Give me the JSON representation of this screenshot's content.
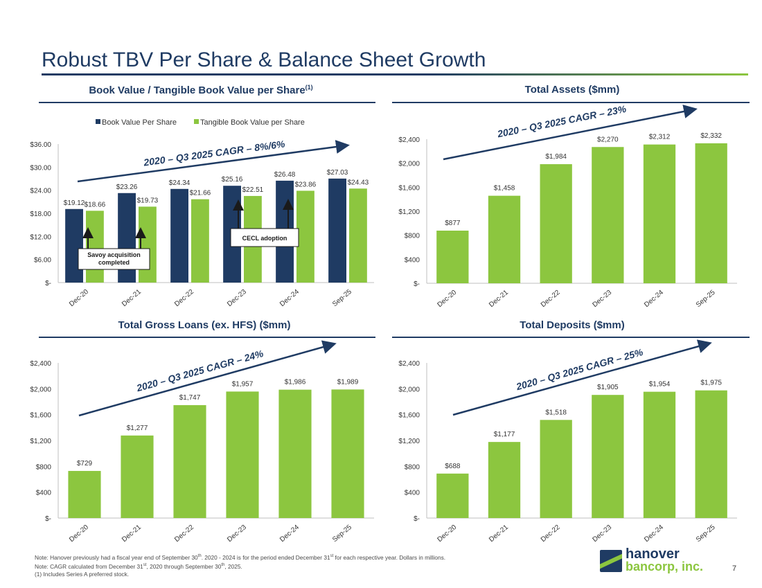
{
  "slide": {
    "title": "Robust TBV Per Share & Balance Sheet Growth",
    "page_number": "7"
  },
  "colors": {
    "navy": "#1f3b63",
    "green": "#8cc63f"
  },
  "panels": {
    "bv": {
      "title": "Book Value / Tangible Book Value per Share",
      "title_sup": "(1)"
    },
    "assets": {
      "title": "Total Assets ($mm)"
    },
    "loans": {
      "title": "Total Gross Loans (ex. HFS) ($mm)"
    },
    "deposits": {
      "title": "Total Deposits ($mm)"
    }
  },
  "footnotes": {
    "line1_a": "Note: Hanover previously had a fiscal year end of September 30",
    "line1_sup1": "th",
    "line1_b": ". 2020 - 2024 is for the period ended December 31",
    "line1_sup2": "st",
    "line1_c": " for each respective year. Dollars in millions.",
    "line2_a": "Note: CAGR calculated from December 31",
    "line2_sup1": "st",
    "line2_b": ", 2020 through September 30",
    "line2_sup2": "th",
    "line2_c": ", 2025.",
    "line3": "(1) Includes Series A preferred stock."
  },
  "logo": {
    "word1": "hanover",
    "word2": "bancorp, inc."
  },
  "chart_data": [
    {
      "id": "bv",
      "type": "bar",
      "title": "Book Value / Tangible Book Value per Share(1)",
      "categories": [
        "Dec-20",
        "Dec-21",
        "Dec-22",
        "Dec-23",
        "Dec-24",
        "Sep-25"
      ],
      "series": [
        {
          "name": "Book Value Per Share",
          "color": "#1f3b63",
          "values": [
            19.12,
            23.26,
            24.34,
            25.16,
            26.48,
            27.03
          ],
          "labels": [
            "$19.12",
            "$23.26",
            "$24.34",
            "$25.16",
            "$26.48",
            "$27.03"
          ]
        },
        {
          "name": "Tangible Book Value per Share",
          "color": "#8cc63f",
          "values": [
            18.66,
            19.73,
            21.66,
            22.51,
            23.86,
            24.43
          ],
          "labels": [
            "$18.66",
            "$19.73",
            "$21.66",
            "$22.51",
            "$23.86",
            "$24.43"
          ]
        }
      ],
      "ylim": [
        0,
        36
      ],
      "yticks": [
        0,
        6,
        12,
        18,
        24,
        30,
        36
      ],
      "ytick_labels": [
        "$-",
        "$6.00",
        "$12.00",
        "$18.00",
        "$24.00",
        "$30.00",
        "$36.00"
      ],
      "legend": "top-center",
      "cagr_label": "2020 – Q3 2025 CAGR – 8%/6%",
      "annotations": [
        {
          "text_lines": [
            "Savoy acquisition",
            "completed"
          ],
          "category_index": 1
        },
        {
          "text_lines": [
            "CECL adoption"
          ],
          "category_index": 3
        }
      ]
    },
    {
      "id": "assets",
      "type": "bar",
      "title": "Total Assets ($mm)",
      "categories": [
        "Dec-20",
        "Dec-21",
        "Dec-22",
        "Dec-23",
        "Dec-24",
        "Sep-25"
      ],
      "values": [
        877,
        1458,
        1984,
        2270,
        2312,
        2332
      ],
      "labels": [
        "$877",
        "$1,458",
        "$1,984",
        "$2,270",
        "$2,312",
        "$2,332"
      ],
      "ylim": [
        0,
        2400
      ],
      "yticks": [
        0,
        400,
        800,
        1200,
        1600,
        2000,
        2400
      ],
      "ytick_labels": [
        "$-",
        "$400",
        "$800",
        "$1,200",
        "$1,600",
        "$2,000",
        "$2,400"
      ],
      "cagr_label": "2020 – Q3 2025 CAGR – 23%"
    },
    {
      "id": "loans",
      "type": "bar",
      "title": "Total Gross Loans (ex. HFS) ($mm)",
      "categories": [
        "Dec-20",
        "Dec-21",
        "Dec-22",
        "Dec-23",
        "Dec-24",
        "Sep-25"
      ],
      "values": [
        729,
        1277,
        1747,
        1957,
        1986,
        1989
      ],
      "labels": [
        "$729",
        "$1,277",
        "$1,747",
        "$1,957",
        "$1,986",
        "$1,989"
      ],
      "ylim": [
        0,
        2400
      ],
      "yticks": [
        0,
        400,
        800,
        1200,
        1600,
        2000,
        2400
      ],
      "ytick_labels": [
        "$-",
        "$400",
        "$800",
        "$1,200",
        "$1,600",
        "$2,000",
        "$2,400"
      ],
      "cagr_label": "2020 – Q3 2025 CAGR – 24%"
    },
    {
      "id": "deposits",
      "type": "bar",
      "title": "Total Deposits ($mm)",
      "categories": [
        "Dec-20",
        "Dec-21",
        "Dec-22",
        "Dec-23",
        "Dec-24",
        "Sep-25"
      ],
      "values": [
        688,
        1177,
        1518,
        1905,
        1954,
        1975
      ],
      "labels": [
        "$688",
        "$1,177",
        "$1,518",
        "$1,905",
        "$1,954",
        "$1,975"
      ],
      "ylim": [
        0,
        2400
      ],
      "yticks": [
        0,
        400,
        800,
        1200,
        1600,
        2000,
        2400
      ],
      "ytick_labels": [
        "$-",
        "$400",
        "$800",
        "$1,200",
        "$1,600",
        "$2,000",
        "$2,400"
      ],
      "cagr_label": "2020 – Q3 2025 CAGR – 25%"
    }
  ]
}
